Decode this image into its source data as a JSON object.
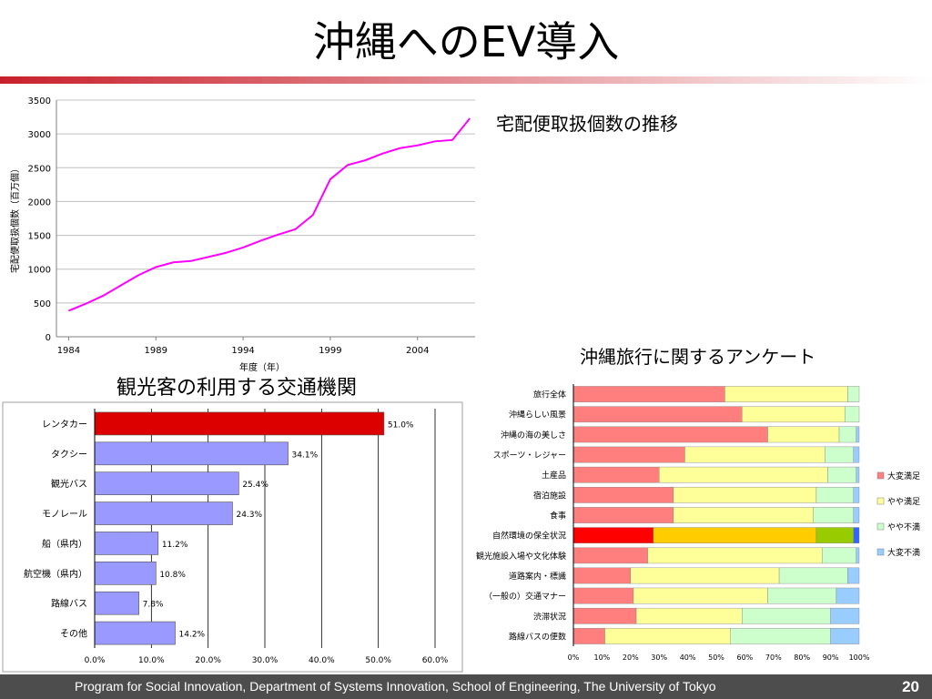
{
  "slide": {
    "title": "沖縄へのEV導入",
    "footer": "Program for Social Innovation, Department of Systems Innovation, School of Engineering, The University of Tokyo",
    "page_number": "20",
    "accent_colors": [
      "#c8202a",
      "#ffffff"
    ]
  },
  "chart_data": [
    {
      "type": "line",
      "title": "宅配便取扱個数の推移",
      "xlabel": "年度（年）",
      "ylabel": "宅配便取扱個数（百万個）",
      "x": [
        1984,
        1985,
        1986,
        1987,
        1988,
        1989,
        1990,
        1991,
        1992,
        1993,
        1994,
        1995,
        1996,
        1997,
        1998,
        1999,
        2000,
        2001,
        2002,
        2003,
        2004,
        2005,
        2006,
        2007
      ],
      "series": [
        {
          "values": [
            385,
            490,
            610,
            760,
            910,
            1030,
            1100,
            1120,
            1180,
            1240,
            1320,
            1420,
            1510,
            1590,
            1800,
            2330,
            2540,
            2610,
            2710,
            2790,
            2830,
            2890,
            2910,
            3230
          ],
          "color": "#ff00ff"
        }
      ],
      "xticks": [
        "1984",
        "1989",
        "1994",
        "1999",
        "2004"
      ],
      "yticks": [
        "0",
        "500",
        "1000",
        "1500",
        "2000",
        "2500",
        "3000",
        "3500"
      ],
      "ylim": [
        0,
        3500
      ],
      "grid": "horizontal"
    },
    {
      "type": "bar",
      "orientation": "horizontal",
      "title": "観光客の利用する交通機関",
      "categories": [
        "レンタカー",
        "タクシー",
        "観光バス",
        "モノレール",
        "船（県内）",
        "航空機（県内）",
        "路線バス",
        "その他"
      ],
      "values": [
        51.0,
        34.1,
        25.4,
        24.3,
        11.2,
        10.8,
        7.8,
        14.2
      ],
      "value_labels": [
        "51.0%",
        "34.1%",
        "25.4%",
        "24.3%",
        "11.2%",
        "10.8%",
        "7.8%",
        "14.2%"
      ],
      "xticks": [
        "0.0%",
        "10.0%",
        "20.0%",
        "30.0%",
        "40.0%",
        "50.0%",
        "60.0%"
      ],
      "xlim": [
        0,
        60
      ],
      "highlight_color": "#dd0000",
      "bar_color": "#9999ff",
      "grid": "vertical"
    },
    {
      "type": "bar",
      "orientation": "horizontal",
      "stacked": "percent",
      "title": "沖縄旅行に関するアンケート",
      "categories": [
        "旅行全体",
        "沖縄らしい風景",
        "沖縄の海の美しさ",
        "スポーツ・レジャー",
        "土産品",
        "宿泊施設",
        "食事",
        "自然環境の保全状況",
        "観光施設入場や文化体験",
        "道路案内・標識",
        "（一般の）交通マナー",
        "渋滞状況",
        "路線バスの便数"
      ],
      "series": [
        {
          "name": "大変満足",
          "color": "#ff7f7f",
          "values": [
            53,
            59,
            68,
            39,
            30,
            35,
            35,
            28,
            26,
            20,
            21,
            22,
            11
          ]
        },
        {
          "name": "やや満足",
          "color": "#ffff99",
          "values": [
            43,
            36,
            25,
            49,
            59,
            50,
            49,
            57,
            61,
            52,
            47,
            37,
            44
          ]
        },
        {
          "name": "やや不満",
          "color": "#ccffcc",
          "values": [
            4,
            5,
            6,
            10,
            10,
            13,
            14,
            13,
            12,
            24,
            24,
            31,
            35
          ]
        },
        {
          "name": "大変不満",
          "color": "#99ccff",
          "values": [
            0,
            0,
            1,
            2,
            1,
            2,
            2,
            2,
            1,
            4,
            8,
            10,
            10
          ]
        }
      ],
      "highlight_category": "自然環境の保全状況",
      "highlight_colors": [
        "#ff0000",
        "#ffcc00",
        "#99cc00",
        "#3366ff"
      ],
      "xticks": [
        "0%",
        "10%",
        "20%",
        "30%",
        "40%",
        "50%",
        "60%",
        "70%",
        "80%",
        "90%",
        "100%"
      ],
      "xlim": [
        0,
        100
      ]
    }
  ]
}
